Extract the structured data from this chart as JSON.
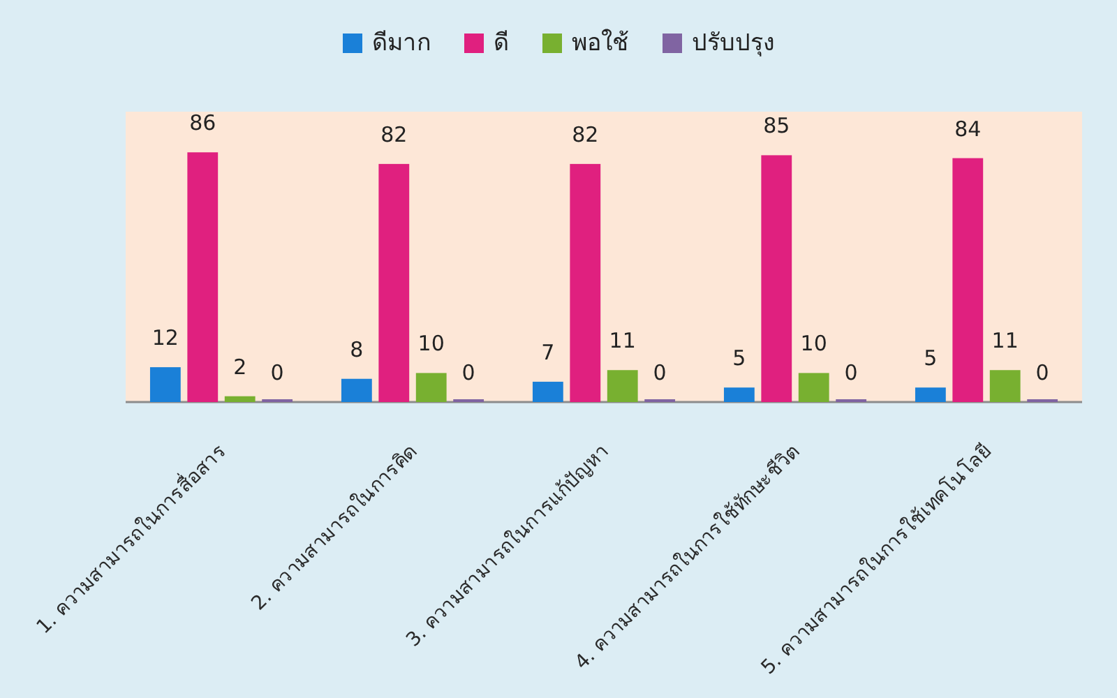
{
  "chart_data": {
    "type": "bar",
    "categories": [
      "1. ความสามารถในการสื่อสาร",
      "2. ความสามารถในการคิด",
      "3. ความสามารถในการแก้ปัญหา",
      "4. ความสามารถในการใช้ทักษะชีวิต",
      "5. ความสามารถในการใช้เทคโนโลยี"
    ],
    "series": [
      {
        "name": "ดีมาก",
        "color": "#1a80d8",
        "values": [
          12,
          8,
          7,
          5,
          5
        ]
      },
      {
        "name": "ดี",
        "color": "#e0207f",
        "values": [
          86,
          82,
          82,
          85,
          84
        ]
      },
      {
        "name": "พอใช้",
        "color": "#78b030",
        "values": [
          2,
          10,
          11,
          10,
          11
        ]
      },
      {
        "name": "ปรับปรุง",
        "color": "#8064a2",
        "values": [
          0,
          0,
          0,
          0,
          0
        ]
      }
    ],
    "ylim": [
      0,
      100
    ],
    "data_labels": true,
    "legend": "top",
    "tick_labels": "x"
  }
}
